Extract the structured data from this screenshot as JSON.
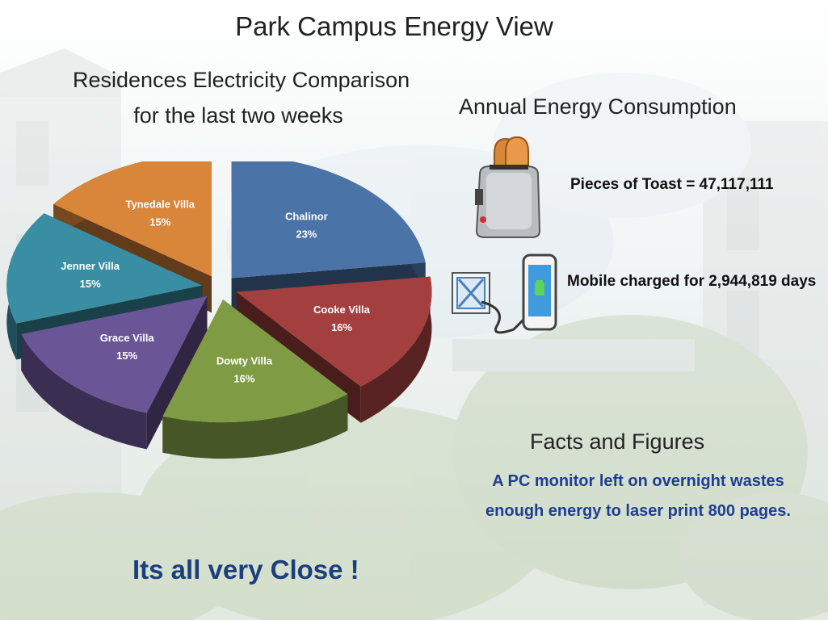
{
  "title": "Park Campus Energy View",
  "chart": {
    "title_line1": "Residences Electricity Comparison",
    "title_line2": "for the last two weeks"
  },
  "chart_data": {
    "type": "pie",
    "title": "Residences Electricity Comparison for the last two weeks",
    "slices": [
      {
        "name": "Chalinor",
        "value": 23,
        "label": "23%",
        "color": "#4a73a8"
      },
      {
        "name": "Cooke Villa",
        "value": 16,
        "label": "16%",
        "color": "#a3403f"
      },
      {
        "name": "Dowty Villa",
        "value": 16,
        "label": "16%",
        "color": "#7f9c45"
      },
      {
        "name": "Grace Villa",
        "value": 15,
        "label": "15%",
        "color": "#6a5596"
      },
      {
        "name": "Jenner Villa",
        "value": 15,
        "label": "15%",
        "color": "#3a8ea3"
      },
      {
        "name": "Tynedale Villa",
        "value": 15,
        "label": "15%",
        "color": "#d9853a"
      }
    ]
  },
  "annual": {
    "title": "Annual Energy Consumption",
    "toast": "Pieces of Toast = 47,117,111",
    "toast_icon": "toaster-icon",
    "mobile": "Mobile charged for 2,944,819 days",
    "mobile_icon": "phone-charger-icon"
  },
  "facts": {
    "title": "Facts and Figures",
    "line1": "A PC monitor  left on overnight wastes",
    "line2": "enough energy to laser print 800 pages."
  },
  "closing": "Its all very Close !"
}
